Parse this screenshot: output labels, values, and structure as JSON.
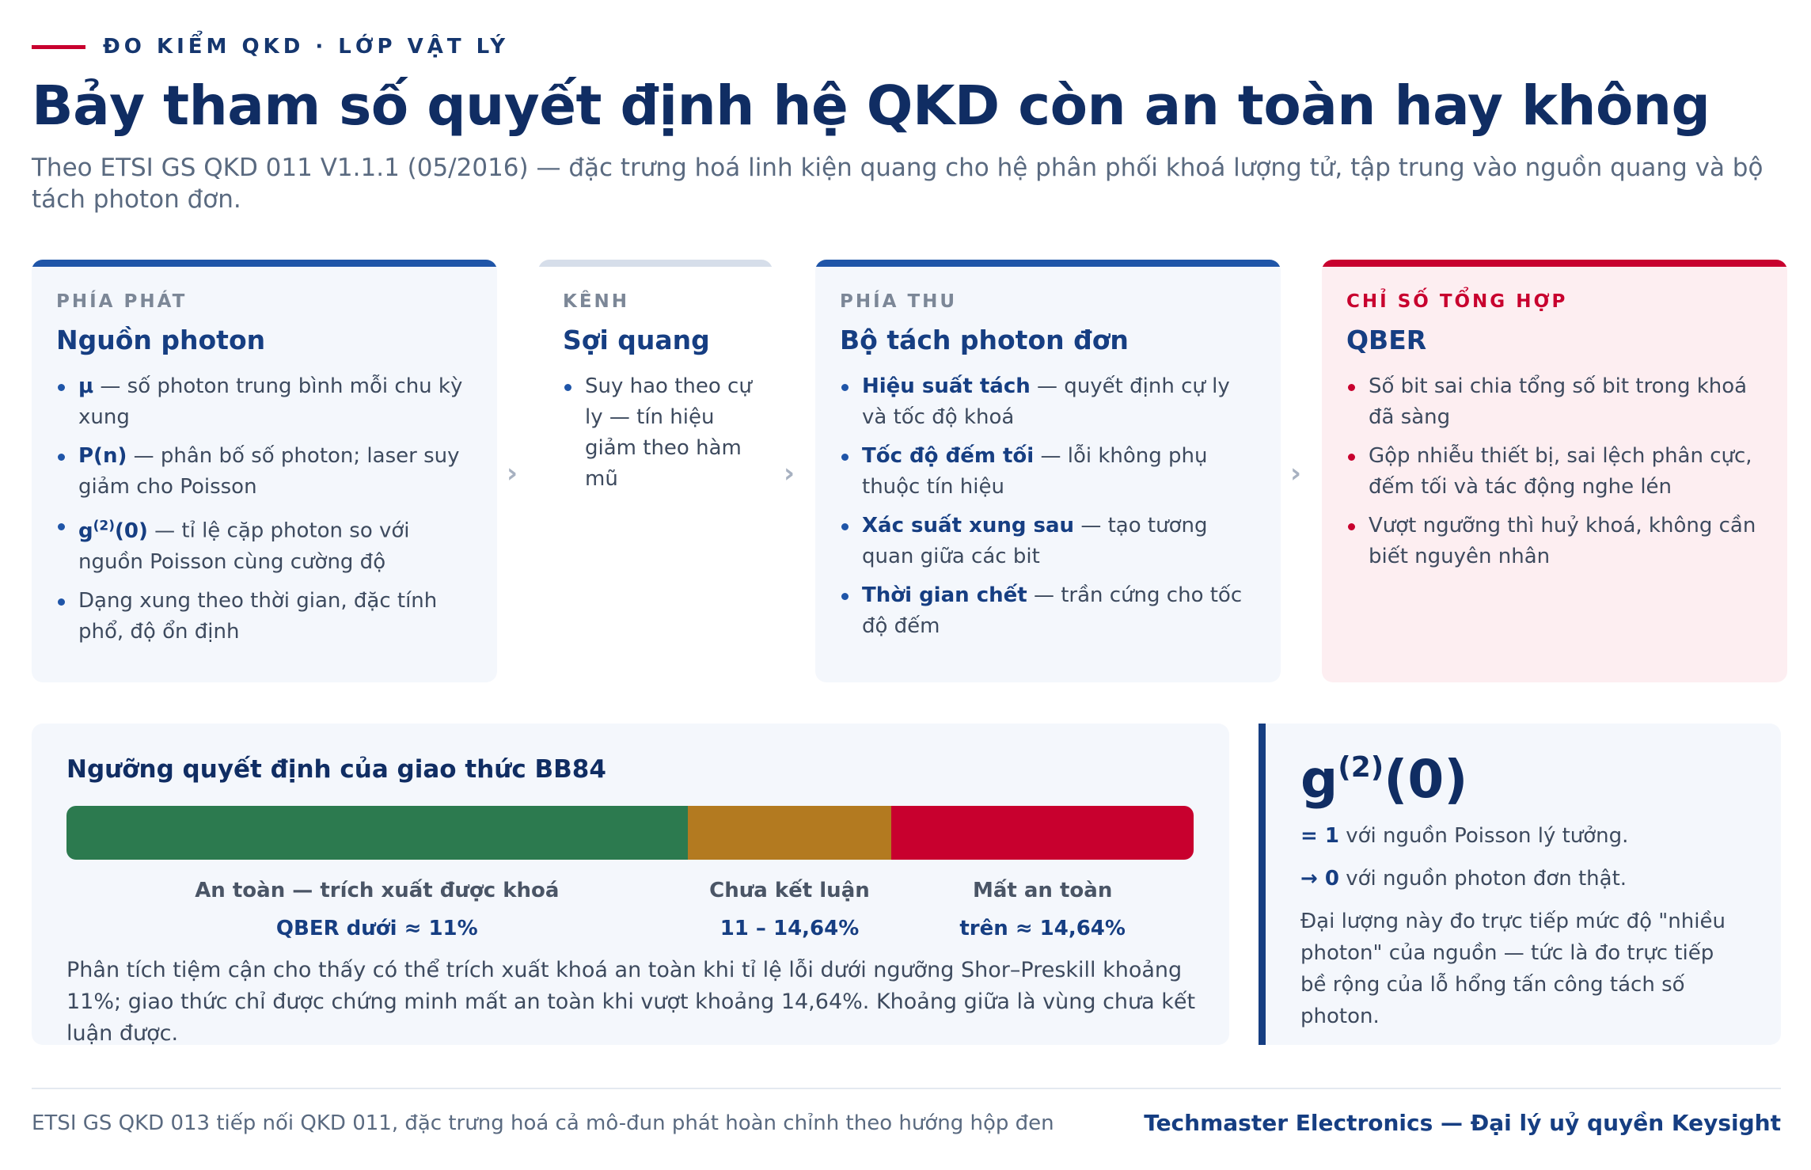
{
  "eyebrow": "ĐO KIỂM QKD · LỚP VẬT LÝ",
  "title": "Bảy tham số quyết định hệ QKD còn an toàn hay không",
  "subtitle": "Theo ETSI GS QKD 011 V1.1.1 (05/2016) — đặc trưng hoá linh kiện quang cho hệ phân phối khoá lượng tử, tập trung vào nguồn quang và bộ tách photon đơn.",
  "cards": {
    "source": {
      "kicker": "PHÍA PHÁT",
      "title": "Nguồn photon",
      "items": [
        {
          "term": "μ",
          "text": " — số photon trung bình mỗi chu kỳ xung"
        },
        {
          "term": "P(n)",
          "text": " — phân bố số photon; laser suy giảm cho Poisson"
        },
        {
          "term_base": "g",
          "term_sup": "(2)",
          "term_tail": "(0)",
          "text": " — tỉ lệ cặp photon so với nguồn Poisson cùng cường độ"
        },
        {
          "term": "",
          "text": "Dạng xung theo thời gian, đặc tính phổ, độ ổn định"
        }
      ]
    },
    "channel": {
      "kicker": "KÊNH",
      "title": "Sợi quang",
      "items": [
        {
          "text": "Suy hao theo cự ly — tín hiệu giảm theo hàm mũ"
        }
      ]
    },
    "detector": {
      "kicker": "PHÍA THU",
      "title": "Bộ tách photon đơn",
      "items": [
        {
          "term": "Hiệu suất tách",
          "text": " — quyết định cự ly và tốc độ khoá"
        },
        {
          "term": "Tốc độ đếm tối",
          "text": " — lỗi không phụ thuộc tín hiệu"
        },
        {
          "term": "Xác suất xung sau",
          "text": " — tạo tương quan giữa các bit"
        },
        {
          "term": "Thời gian chết",
          "text": " — trần cứng cho tốc độ đếm"
        }
      ]
    },
    "qber": {
      "kicker": "CHỈ SỐ TỔNG HỢP",
      "title": "QBER",
      "items": [
        {
          "text": "Số bit sai chia tổng số bit trong khoá đã sàng"
        },
        {
          "text": "Gộp nhiễu thiết bị, sai lệch phân cực, đếm tối và tác động nghe lén"
        },
        {
          "text": "Vượt ngưỡng thì huỷ khoá, không cần biết nguyên nhân"
        }
      ]
    },
    "arrow_glyph": "›"
  },
  "threshold": {
    "title": "Ngưỡng quyết định của giao thức BB84",
    "segments": [
      {
        "name": "An toàn — trích xuất được khoá",
        "range": "QBER dưới ≈ 11%",
        "color": "#2c7a4f",
        "fraction": 0.551
      },
      {
        "name": "Chưa kết luận",
        "range": "11 – 14,64%",
        "color": "#b37a20",
        "fraction": 0.181
      },
      {
        "name": "Mất an toàn",
        "range": "trên ≈ 14,64%",
        "color": "#c8002e",
        "fraction": 0.268
      }
    ],
    "description": "Phân tích tiệm cận cho thấy có thể trích xuất khoá an toàn khi tỉ lệ lỗi dưới ngưỡng Shor–Preskill khoảng 11%; giao thức chỉ được chứng minh mất an toàn khi vượt khoảng 14,64%. Khoảng giữa là vùng chưa kết luận được."
  },
  "g2": {
    "title_base": "g",
    "title_sup": "(2)",
    "title_tail": "(0)",
    "line1_term": "= 1",
    "line1_text": " với nguồn Poisson lý tưởng.",
    "line2_term": "→ 0",
    "line2_text": " với nguồn photon đơn thật.",
    "note": "Đại lượng này đo trực tiếp mức độ \"nhiều photon\" của nguồn — tức là đo trực tiếp bề rộng của lỗ hổng tấn công tách số photon."
  },
  "footer": {
    "left": "ETSI GS QKD 013 tiếp nối QKD 011, đặc trưng hoá cả mô-đun phát hoàn chỉnh theo hướng hộp đen",
    "right": "Techmaster Electronics — Đại lý uỷ quyền Keysight"
  }
}
